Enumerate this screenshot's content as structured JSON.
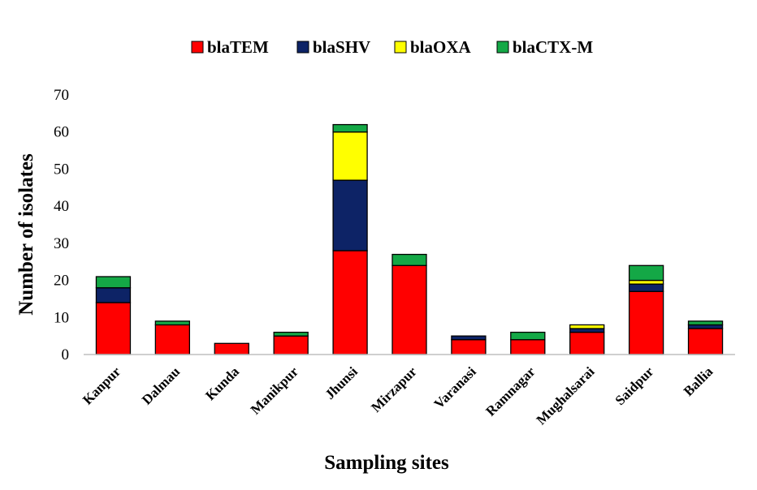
{
  "chart_data": {
    "type": "bar",
    "stacked": true,
    "title": "",
    "xlabel": "Sampling sites",
    "ylabel": "Number of isolates",
    "ylim": [
      0,
      70
    ],
    "yticks": [
      0,
      10,
      20,
      30,
      40,
      50,
      60,
      70
    ],
    "grid": false,
    "legend_position": "top-center",
    "categories": [
      "Kanpur",
      "Dalmau",
      "Kunda",
      "Manikpur",
      "Jhunsi",
      "Mirzapur",
      "Varanasi",
      "Ramnagar",
      "Mughalsarai",
      "Saidpur",
      "Ballia"
    ],
    "series": [
      {
        "name": "blaTEM",
        "color": "#ff0000",
        "values": [
          14,
          8,
          3,
          5,
          28,
          24,
          4,
          4,
          6,
          17,
          7
        ]
      },
      {
        "name": "blaSHV",
        "color": "#0d2366",
        "values": [
          4,
          0,
          0,
          0,
          19,
          0,
          1,
          0,
          1,
          2,
          1
        ]
      },
      {
        "name": "blaOXA",
        "color": "#ffff00",
        "values": [
          0,
          0,
          0,
          0,
          13,
          0,
          0,
          0,
          1,
          1,
          0
        ]
      },
      {
        "name": "blaCTX-M",
        "color": "#14a846",
        "values": [
          3,
          1,
          0,
          1,
          2,
          3,
          0,
          2,
          0,
          4,
          1
        ]
      }
    ]
  }
}
